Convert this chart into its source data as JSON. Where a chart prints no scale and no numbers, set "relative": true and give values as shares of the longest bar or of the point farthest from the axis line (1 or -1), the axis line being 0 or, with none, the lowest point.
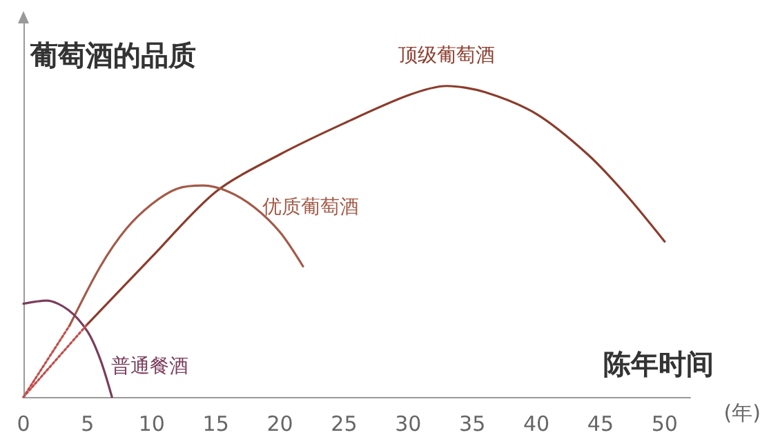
{
  "chart_data": {
    "type": "line",
    "relative": true,
    "ylabel": "葡萄酒的品质",
    "xlabel": "陈年时间",
    "xlim": [
      0,
      52
    ],
    "xticks": [
      0,
      5,
      10,
      15,
      20,
      25,
      30,
      35,
      40,
      45,
      50
    ],
    "grid": false,
    "legend": false,
    "marker": "none",
    "line_style": "solid",
    "series": [
      {
        "name": "顶级葡萄酒",
        "color": "#8b3c2c",
        "x": [
          4.9,
          10,
          15,
          20,
          25,
          30,
          33,
          36,
          40,
          44,
          47,
          50
        ],
        "values": [
          0.23,
          0.45,
          0.66,
          0.78,
          0.88,
          0.97,
          1,
          0.98,
          0.91,
          0.78,
          0.65,
          0.5
        ]
      },
      {
        "name": "优质葡萄酒",
        "color": "#a35a48",
        "x": [
          3.6,
          6,
          8,
          10,
          12,
          14,
          16,
          18,
          20,
          21.8
        ],
        "values": [
          0.23,
          0.42,
          0.54,
          0.62,
          0.67,
          0.68,
          0.66,
          0.61,
          0.53,
          0.42
        ]
      },
      {
        "name": "普通餐酒",
        "color": "#7a3d5c",
        "x": [
          0,
          1.8,
          3.5,
          5,
          6,
          6.9
        ],
        "values": [
          0.3,
          0.31,
          0.28,
          0.21,
          0.12,
          0
        ]
      },
      {
        "color": "#c0504d",
        "line_style": "dotted",
        "x": [
          0,
          3.6
        ],
        "values": [
          0,
          0.23
        ]
      },
      {
        "color": "#c0504d",
        "line_style": "dotted",
        "x": [
          0,
          4.9
        ],
        "values": [
          0,
          0.23
        ]
      }
    ],
    "annotations": [
      "(年)"
    ]
  }
}
